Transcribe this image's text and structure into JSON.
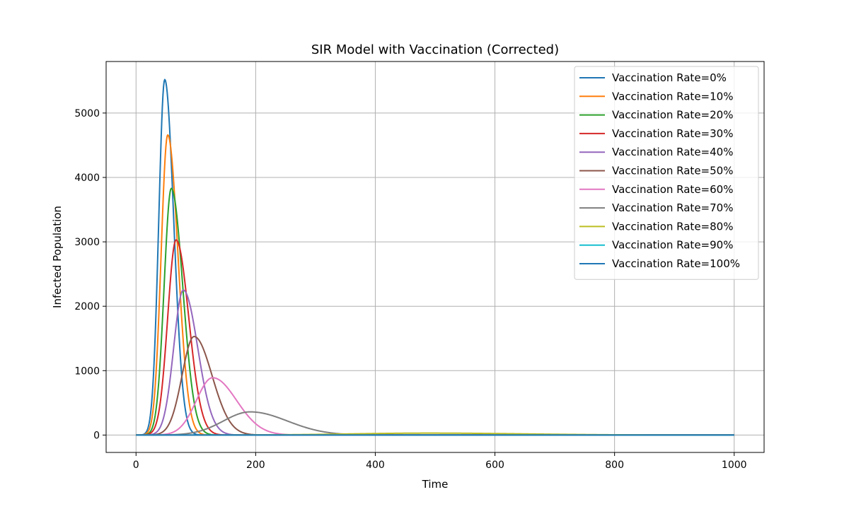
{
  "chart_data": {
    "type": "line",
    "title": "SIR Model with Vaccination (Corrected)",
    "xlabel": "Time",
    "ylabel": "Infected Population",
    "xlim": [
      -50,
      1050
    ],
    "ylim": [
      -270,
      5800
    ],
    "xticks": [
      0,
      200,
      400,
      600,
      800,
      1000
    ],
    "yticks": [
      0,
      1000,
      2000,
      3000,
      4000,
      5000
    ],
    "grid": true,
    "legend_position": "top-right",
    "series": [
      {
        "name": "Vaccination Rate=0%",
        "color": "#1f77b4",
        "peak_x": 48,
        "peak_y": 5520,
        "sigma_left": 10,
        "sigma_right": 15
      },
      {
        "name": "Vaccination Rate=10%",
        "color": "#ff7f0e",
        "peak_x": 53,
        "peak_y": 4660,
        "sigma_left": 11,
        "sigma_right": 17
      },
      {
        "name": "Vaccination Rate=20%",
        "color": "#2ca02c",
        "peak_x": 59,
        "peak_y": 3830,
        "sigma_left": 12,
        "sigma_right": 19
      },
      {
        "name": "Vaccination Rate=30%",
        "color": "#d62728",
        "peak_x": 67,
        "peak_y": 3030,
        "sigma_left": 14,
        "sigma_right": 21
      },
      {
        "name": "Vaccination Rate=40%",
        "color": "#9467bd",
        "peak_x": 79,
        "peak_y": 2250,
        "sigma_left": 16,
        "sigma_right": 24
      },
      {
        "name": "Vaccination Rate=50%",
        "color": "#8c564b",
        "peak_x": 97,
        "peak_y": 1530,
        "sigma_left": 20,
        "sigma_right": 30
      },
      {
        "name": "Vaccination Rate=60%",
        "color": "#e377c2",
        "peak_x": 128,
        "peak_y": 890,
        "sigma_left": 27,
        "sigma_right": 40
      },
      {
        "name": "Vaccination Rate=70%",
        "color": "#7f7f7f",
        "peak_x": 191,
        "peak_y": 360,
        "sigma_left": 45,
        "sigma_right": 62
      },
      {
        "name": "Vaccination Rate=80%",
        "color": "#bcbd22",
        "peak_x": 490,
        "peak_y": 30,
        "sigma_left": 130,
        "sigma_right": 160
      },
      {
        "name": "Vaccination Rate=90%",
        "color": "#17becf",
        "peak_x": 500,
        "peak_y": 0,
        "sigma_left": 100,
        "sigma_right": 100
      },
      {
        "name": "Vaccination Rate=100%",
        "color": "#1f77b4",
        "peak_x": 500,
        "peak_y": 0,
        "sigma_left": 100,
        "sigma_right": 100
      }
    ]
  }
}
